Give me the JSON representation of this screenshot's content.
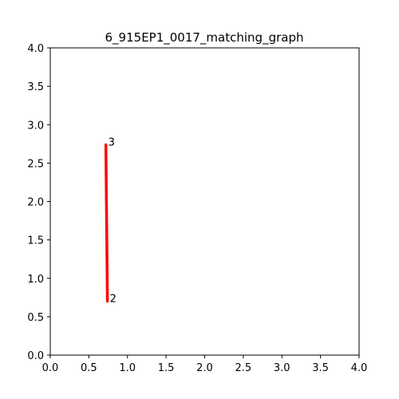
{
  "chart_data": {
    "type": "line",
    "title": "6_915EP1_0017_matching_graph",
    "xlabel": "",
    "ylabel": "",
    "xlim": [
      0.0,
      4.0
    ],
    "ylim": [
      0.0,
      4.0
    ],
    "grid": false,
    "x_ticks": [
      "0.0",
      "0.5",
      "1.0",
      "1.5",
      "2.0",
      "2.5",
      "3.0",
      "3.5",
      "4.0"
    ],
    "y_ticks": [
      "0.0",
      "0.5",
      "1.0",
      "1.5",
      "2.0",
      "2.5",
      "3.0",
      "3.5",
      "4.0"
    ],
    "nodes": [
      {
        "label": "2",
        "x": 0.74,
        "y": 0.7
      },
      {
        "label": "3",
        "x": 0.72,
        "y": 2.74
      }
    ],
    "edges": [
      {
        "from": "2",
        "to": "3",
        "color": "#ff0000"
      }
    ]
  }
}
